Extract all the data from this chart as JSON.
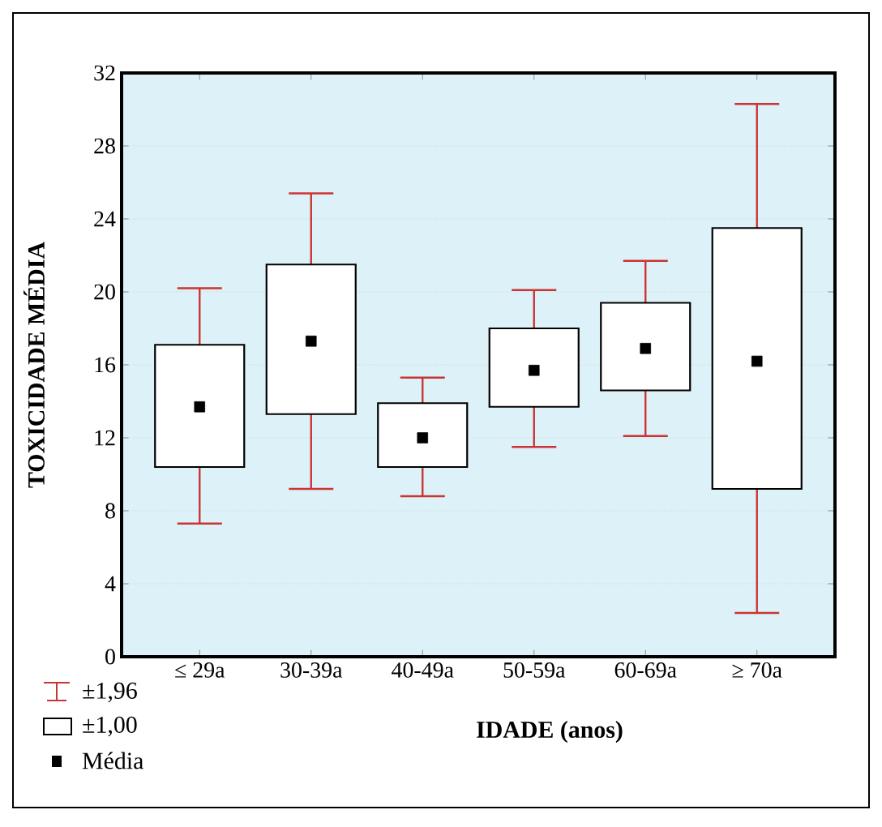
{
  "chart_data": {
    "type": "box",
    "xlabel": "IDADE (anos)",
    "ylabel": "TOXICIDADE MÉDIA",
    "categories": [
      "≤ 29a",
      "30-39a",
      "40-49a",
      "50-59a",
      "60-69a",
      "≥ 70a"
    ],
    "series": [
      {
        "color": "#ffffff",
        "boxes": [
          {
            "low": 7.3,
            "q1": 10.4,
            "q3": 17.1,
            "high": 20.2,
            "mean": 13.7
          },
          {
            "low": 9.2,
            "q1": 13.3,
            "q3": 21.5,
            "high": 25.4,
            "mean": 17.3
          },
          {
            "low": 8.8,
            "q1": 10.4,
            "q3": 13.9,
            "high": 15.3,
            "mean": 12.0
          },
          {
            "low": 11.5,
            "q1": 13.7,
            "q3": 18.0,
            "high": 20.1,
            "mean": 15.7
          },
          {
            "low": 12.1,
            "q1": 14.6,
            "q3": 19.4,
            "high": 21.7,
            "mean": 16.9
          },
          {
            "low": 2.4,
            "q1": 9.2,
            "q3": 23.5,
            "high": 30.3,
            "mean": 16.2
          }
        ]
      }
    ],
    "ylim": [
      0,
      32
    ],
    "yticks": [
      0,
      4,
      8,
      12,
      16,
      20,
      24,
      28,
      32
    ],
    "grid": "y",
    "annotations": [
      "±1,96",
      "±1,00",
      "Média"
    ]
  }
}
